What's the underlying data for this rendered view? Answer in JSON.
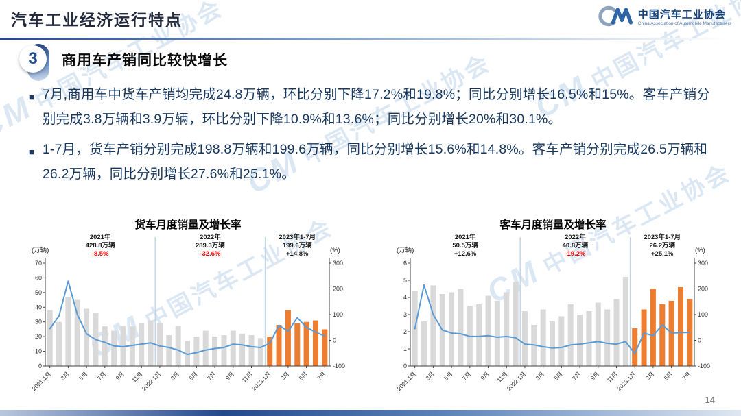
{
  "slide": {
    "title": "汽车工业经济运行特点",
    "page_number": "14",
    "bullet_marker": "■",
    "section": {
      "number": "3",
      "heading": "商用车产销同比较快增长"
    },
    "bullets": [
      "7月,商用车中货车产销均完成24.8万辆，环比分别下降17.2%和19.8%；同比分别增长16.5%和15%。客车产销分别完成3.8万辆和3.9万辆，环比分别下降10.9%和13.6%；同比分别增长20%和30.1%。",
      "1-7月，货车产销分别完成198.8万辆和199.6万辆，同比分别增长15.6%和14.8%。客车产销分别完成26.5万辆和26.2万辆，同比分别增长27.6%和25.1%。"
    ],
    "logo": {
      "mark": "CM",
      "name_cn": "中国汽车工业协会",
      "name_en": "China Association of Automobile Manufacturers"
    },
    "watermark_text": "中国汽车工业协会"
  },
  "colors": {
    "accent_blue": "#1F4E8C",
    "text_navy": "#17375E",
    "bar_gray": "#D9D9D9",
    "bar_orange": "#ED7D31",
    "line_blue": "#5B9BD5",
    "separator_blue": "#BDD7EE",
    "negative_red": "#FF0000"
  },
  "chart_data": [
    {
      "type": "bar",
      "title": "货车月度销量及增长率",
      "left_axis": {
        "label": "(万辆)",
        "min": 0,
        "max": 70,
        "step": 10
      },
      "right_axis": {
        "label": "(%)",
        "min": -100,
        "max": 300,
        "step": 100
      },
      "x_tick_labels": [
        "2021.1月",
        "3月",
        "5月",
        "7月",
        "9月",
        "11月",
        "2022.1月",
        "3月",
        "5月",
        "7月",
        "9月",
        "11月",
        "2023.1月",
        "3月",
        "5月",
        "7月"
      ],
      "year_separators": [
        12,
        24
      ],
      "orange_from": 24,
      "annotation_centers": [
        5.5,
        17.5,
        27
      ],
      "annotations": [
        {
          "line1": "2021年",
          "line2": "428.8万辆",
          "line3": "-8.5%",
          "red": true
        },
        {
          "line1": "2022年",
          "line2": "289.3万辆",
          "line3": "-32.6%",
          "red": true
        },
        {
          "line1": "2023年1-7月",
          "line2": "199.6万辆",
          "line3": "+14.8%",
          "red": false
        }
      ],
      "bars_series_name": "货车月度销量(万辆)",
      "bars": [
        38,
        30,
        47,
        45,
        39,
        36,
        27,
        24,
        27,
        27,
        29,
        31,
        29,
        21,
        27,
        17,
        20,
        24,
        20,
        21,
        24,
        22,
        21,
        19,
        20,
        28,
        38,
        29,
        30,
        31,
        25
      ],
      "line_series_name": "同比增长率(%)",
      "line": [
        45,
        95,
        230,
        100,
        25,
        3,
        -8,
        -22,
        -25,
        -20,
        -15,
        -10,
        -22,
        -28,
        -38,
        -55,
        -48,
        -38,
        -32,
        -28,
        -15,
        -18,
        -25,
        -28,
        -12,
        58,
        35,
        88,
        50,
        32,
        16
      ],
      "grid": false,
      "legend": false
    },
    {
      "type": "bar",
      "title": "客车月度销量及增长率",
      "left_axis": {
        "label": "(万辆)",
        "min": 0,
        "max": 6,
        "step": 1
      },
      "right_axis": {
        "label": "(%)",
        "min": -100,
        "max": 300,
        "step": 100
      },
      "x_tick_labels": [
        "2021.1月",
        "3月",
        "5月",
        "7月",
        "9月",
        "11月",
        "2022.1月",
        "3月",
        "5月",
        "7月",
        "9月",
        "11月",
        "2023.1月",
        "3月",
        "5月",
        "7月"
      ],
      "year_separators": [
        12,
        24
      ],
      "orange_from": 24,
      "annotation_centers": [
        5.5,
        17.5,
        27
      ],
      "annotations": [
        {
          "line1": "2021年",
          "line2": "50.5万辆",
          "line3": "+12.6%",
          "red": false
        },
        {
          "line1": "2022年",
          "line2": "40.8万辆",
          "line3": "-19.2%",
          "red": true
        },
        {
          "line1": "2023年1-7月",
          "line2": "26.2万辆",
          "line3": "+25.1%",
          "red": false
        }
      ],
      "bars_series_name": "客车月度销量(万辆)",
      "bars": [
        4.4,
        2.6,
        4.7,
        4.2,
        4.3,
        4.5,
        3.5,
        3.6,
        4.1,
        3.8,
        4.3,
        4.9,
        3.2,
        2.4,
        3.3,
        2.6,
        2.9,
        3.6,
        3.0,
        3.2,
        3.7,
        3.3,
        3.9,
        5.2,
        2.2,
        3.3,
        4.5,
        3.6,
        3.8,
        4.6,
        3.9
      ],
      "line_series_name": "同比增长率(%)",
      "line": [
        45,
        215,
        100,
        40,
        28,
        25,
        15,
        15,
        18,
        12,
        15,
        10,
        -15,
        -18,
        -25,
        -30,
        -28,
        -18,
        -15,
        -10,
        -5,
        -12,
        -15,
        -5,
        -52,
        28,
        18,
        60,
        28,
        30,
        30
      ],
      "grid": false,
      "legend": false
    }
  ]
}
